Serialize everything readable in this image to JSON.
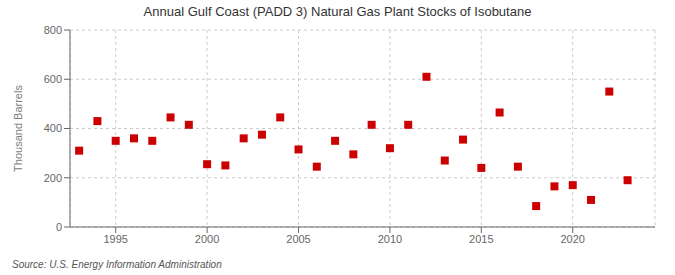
{
  "chart_data": {
    "type": "scatter",
    "title": "Annual Gulf Coast (PADD 3) Natural Gas Plant Stocks of Isobutane",
    "ylabel": "Thousand Barrels",
    "annotation": "Source: U.S. Energy Information Administration",
    "x": [
      1993,
      1994,
      1995,
      1996,
      1997,
      1998,
      1999,
      2000,
      2001,
      2002,
      2003,
      2004,
      2005,
      2006,
      2007,
      2008,
      2009,
      2010,
      2011,
      2012,
      2013,
      2014,
      2015,
      2016,
      2017,
      2018,
      2019,
      2020,
      2021,
      2022,
      2023
    ],
    "values": [
      310,
      430,
      350,
      360,
      350,
      445,
      415,
      255,
      250,
      360,
      375,
      445,
      315,
      245,
      350,
      295,
      415,
      320,
      415,
      610,
      270,
      355,
      240,
      465,
      245,
      85,
      165,
      170,
      110,
      550,
      190
    ],
    "color": "#cc0000",
    "marker": "square",
    "xlim": [
      1992.5,
      2024.5
    ],
    "ylim": [
      0,
      800
    ],
    "xticks": [
      1995,
      2000,
      2005,
      2010,
      2015,
      2020
    ],
    "yticks": [
      0,
      200,
      400,
      600,
      800
    ],
    "grid": true
  }
}
